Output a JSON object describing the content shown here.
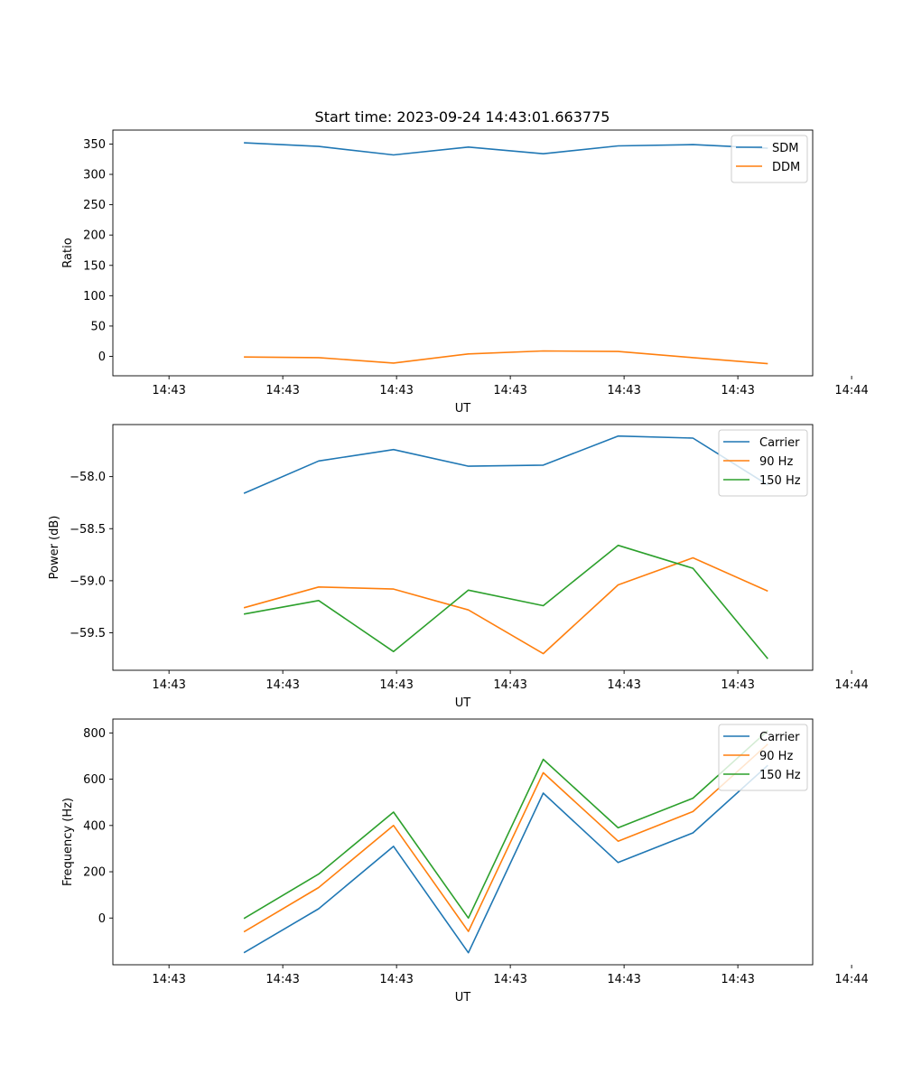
{
  "figure_title": "Start time: 2023-09-24 14:43:01.663775",
  "chart_data": [
    {
      "type": "line",
      "title": "Start time: 2023-09-24 14:43:01.663775",
      "xlabel": "UT",
      "ylabel": "Ratio",
      "x_points": [
        1,
        2,
        3,
        4,
        5,
        6,
        7,
        8
      ],
      "xlim": [
        -0.75,
        8.6
      ],
      "x_ticks": [
        {
          "pos": 0,
          "label": "14:43"
        },
        {
          "pos": 1.52,
          "label": "14:43"
        },
        {
          "pos": 3.04,
          "label": "14:43"
        },
        {
          "pos": 4.56,
          "label": "14:43"
        },
        {
          "pos": 6.08,
          "label": "14:43"
        },
        {
          "pos": 7.6,
          "label": "14:43"
        },
        {
          "pos": 9.12,
          "label": "14:44"
        }
      ],
      "ylim": [
        -32,
        373
      ],
      "y_ticks": [
        0,
        50,
        100,
        150,
        200,
        250,
        300,
        350
      ],
      "y_tick_labels": [
        "0",
        "50",
        "100",
        "150",
        "200",
        "250",
        "300",
        "350"
      ],
      "legend": "upper right",
      "series": [
        {
          "name": "SDM",
          "color": "#1f77b4",
          "values": [
            352,
            346,
            332,
            345,
            334,
            347,
            349,
            343
          ]
        },
        {
          "name": "DDM",
          "color": "#ff7f0e",
          "values": [
            -1,
            -2,
            -11,
            4,
            9,
            8,
            -2,
            -12
          ]
        }
      ]
    },
    {
      "type": "line",
      "title": "",
      "xlabel": "UT",
      "ylabel": "Power (dB)",
      "x_points": [
        1,
        2,
        3,
        4,
        5,
        6,
        7,
        8
      ],
      "xlim": [
        -0.75,
        8.6
      ],
      "x_ticks": [
        {
          "pos": 0,
          "label": "14:43"
        },
        {
          "pos": 1.52,
          "label": "14:43"
        },
        {
          "pos": 3.04,
          "label": "14:43"
        },
        {
          "pos": 4.56,
          "label": "14:43"
        },
        {
          "pos": 6.08,
          "label": "14:43"
        },
        {
          "pos": 7.6,
          "label": "14:43"
        },
        {
          "pos": 9.12,
          "label": "14:44"
        }
      ],
      "ylim": [
        -59.86,
        -57.5
      ],
      "y_ticks": [
        -59.5,
        -59.0,
        -58.5,
        -58.0
      ],
      "y_tick_labels": [
        "−59.5",
        "−59.0",
        "−58.5",
        "−58.0"
      ],
      "legend": "upper right",
      "series": [
        {
          "name": "Carrier",
          "color": "#1f77b4",
          "values": [
            -58.16,
            -57.85,
            -57.74,
            -57.9,
            -57.89,
            -57.61,
            -57.63,
            -58.08
          ]
        },
        {
          "name": "90 Hz",
          "color": "#ff7f0e",
          "values": [
            -59.26,
            -59.06,
            -59.08,
            -59.28,
            -59.7,
            -59.04,
            -58.78,
            -59.1
          ]
        },
        {
          "name": "150 Hz",
          "color": "#2ca02c",
          "values": [
            -59.32,
            -59.19,
            -59.68,
            -59.09,
            -59.24,
            -58.66,
            -58.88,
            -59.75
          ]
        }
      ]
    },
    {
      "type": "line",
      "title": "",
      "xlabel": "UT",
      "ylabel": "Frequency (Hz)",
      "x_points": [
        1,
        2,
        3,
        4,
        5,
        6,
        7,
        8
      ],
      "xlim": [
        -0.75,
        8.6
      ],
      "x_ticks": [
        {
          "pos": 0,
          "label": "14:43"
        },
        {
          "pos": 1.52,
          "label": "14:43"
        },
        {
          "pos": 3.04,
          "label": "14:43"
        },
        {
          "pos": 4.56,
          "label": "14:43"
        },
        {
          "pos": 6.08,
          "label": "14:43"
        },
        {
          "pos": 7.6,
          "label": "14:43"
        },
        {
          "pos": 9.12,
          "label": "14:44"
        }
      ],
      "ylim": [
        -202,
        860
      ],
      "y_ticks": [
        0,
        200,
        400,
        600,
        800
      ],
      "y_tick_labels": [
        "0",
        "200",
        "400",
        "600",
        "800"
      ],
      "legend": "upper right",
      "series": [
        {
          "name": "Carrier",
          "color": "#1f77b4",
          "values": [
            -150,
            40,
            310,
            -150,
            540,
            240,
            368,
            660
          ]
        },
        {
          "name": "90 Hz",
          "color": "#ff7f0e",
          "values": [
            -60,
            132,
            400,
            -58,
            628,
            332,
            460,
            752
          ]
        },
        {
          "name": "150 Hz",
          "color": "#2ca02c",
          "values": [
            -2,
            190,
            458,
            0,
            686,
            390,
            518,
            810
          ]
        }
      ]
    }
  ]
}
